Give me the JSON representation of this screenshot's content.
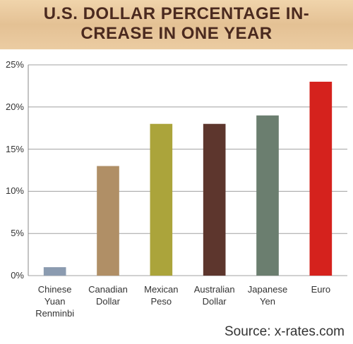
{
  "chart_data": {
    "type": "bar",
    "title": "U.S. DOLLAR PERCENTAGE IN-CREASE IN ONE YEAR",
    "categories": [
      "Chinese Yuan Renminbi",
      "Canadian Dollar",
      "Mexican Peso",
      "Australian Dollar",
      "Japanese Yen",
      "Euro"
    ],
    "values": [
      1,
      13,
      18,
      18,
      19,
      23
    ],
    "colors": [
      "#8b9bb0",
      "#b08f66",
      "#aba43b",
      "#5d362d",
      "#6b7e6f",
      "#d5221d"
    ],
    "ylim": [
      0,
      25
    ],
    "yticks": [
      {
        "value": 0,
        "label": "0%"
      },
      {
        "value": 5,
        "label": "5%"
      },
      {
        "value": 10,
        "label": "10%"
      },
      {
        "value": 15,
        "label": "15%"
      },
      {
        "value": 20,
        "label": "20%"
      },
      {
        "value": 25,
        "label": "25%"
      }
    ],
    "grid": true,
    "source": "Source: x-rates.com"
  }
}
